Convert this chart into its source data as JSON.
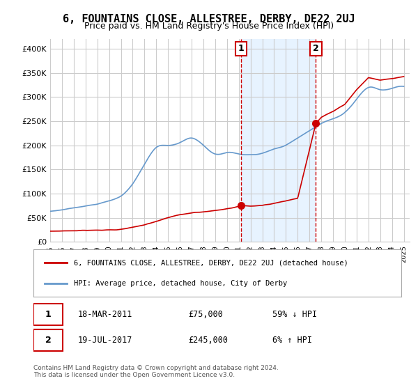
{
  "title": "6, FOUNTAINS CLOSE, ALLESTREE, DERBY, DE22 2UJ",
  "subtitle": "Price paid vs. HM Land Registry's House Price Index (HPI)",
  "legend_line1": "6, FOUNTAINS CLOSE, ALLESTREE, DERBY, DE22 2UJ (detached house)",
  "legend_line2": "HPI: Average price, detached house, City of Derby",
  "footnote": "Contains HM Land Registry data © Crown copyright and database right 2024.\nThis data is licensed under the Open Government Licence v3.0.",
  "sale1_date": "2011-03-18",
  "sale1_price": 75000,
  "sale1_label": "1",
  "sale1_text": "18-MAR-2011",
  "sale1_pct": "59% ↓ HPI",
  "sale2_date": "2017-07-19",
  "sale2_price": 245000,
  "sale2_label": "2",
  "sale2_text": "19-JUL-2017",
  "sale2_pct": "6% ↑ HPI",
  "ylim": [
    0,
    420000
  ],
  "yticks": [
    0,
    50000,
    100000,
    150000,
    200000,
    250000,
    300000,
    350000,
    400000
  ],
  "ytick_labels": [
    "£0",
    "£50K",
    "£100K",
    "£150K",
    "£200K",
    "£250K",
    "£300K",
    "£350K",
    "£400K"
  ],
  "red_color": "#cc0000",
  "blue_color": "#6699cc",
  "shade_color": "#ddeeff",
  "vline_color": "#cc0000",
  "grid_color": "#cccccc",
  "background_color": "#ffffff",
  "title_fontsize": 11,
  "subtitle_fontsize": 9,
  "axis_fontsize": 8,
  "legend_fontsize": 8
}
